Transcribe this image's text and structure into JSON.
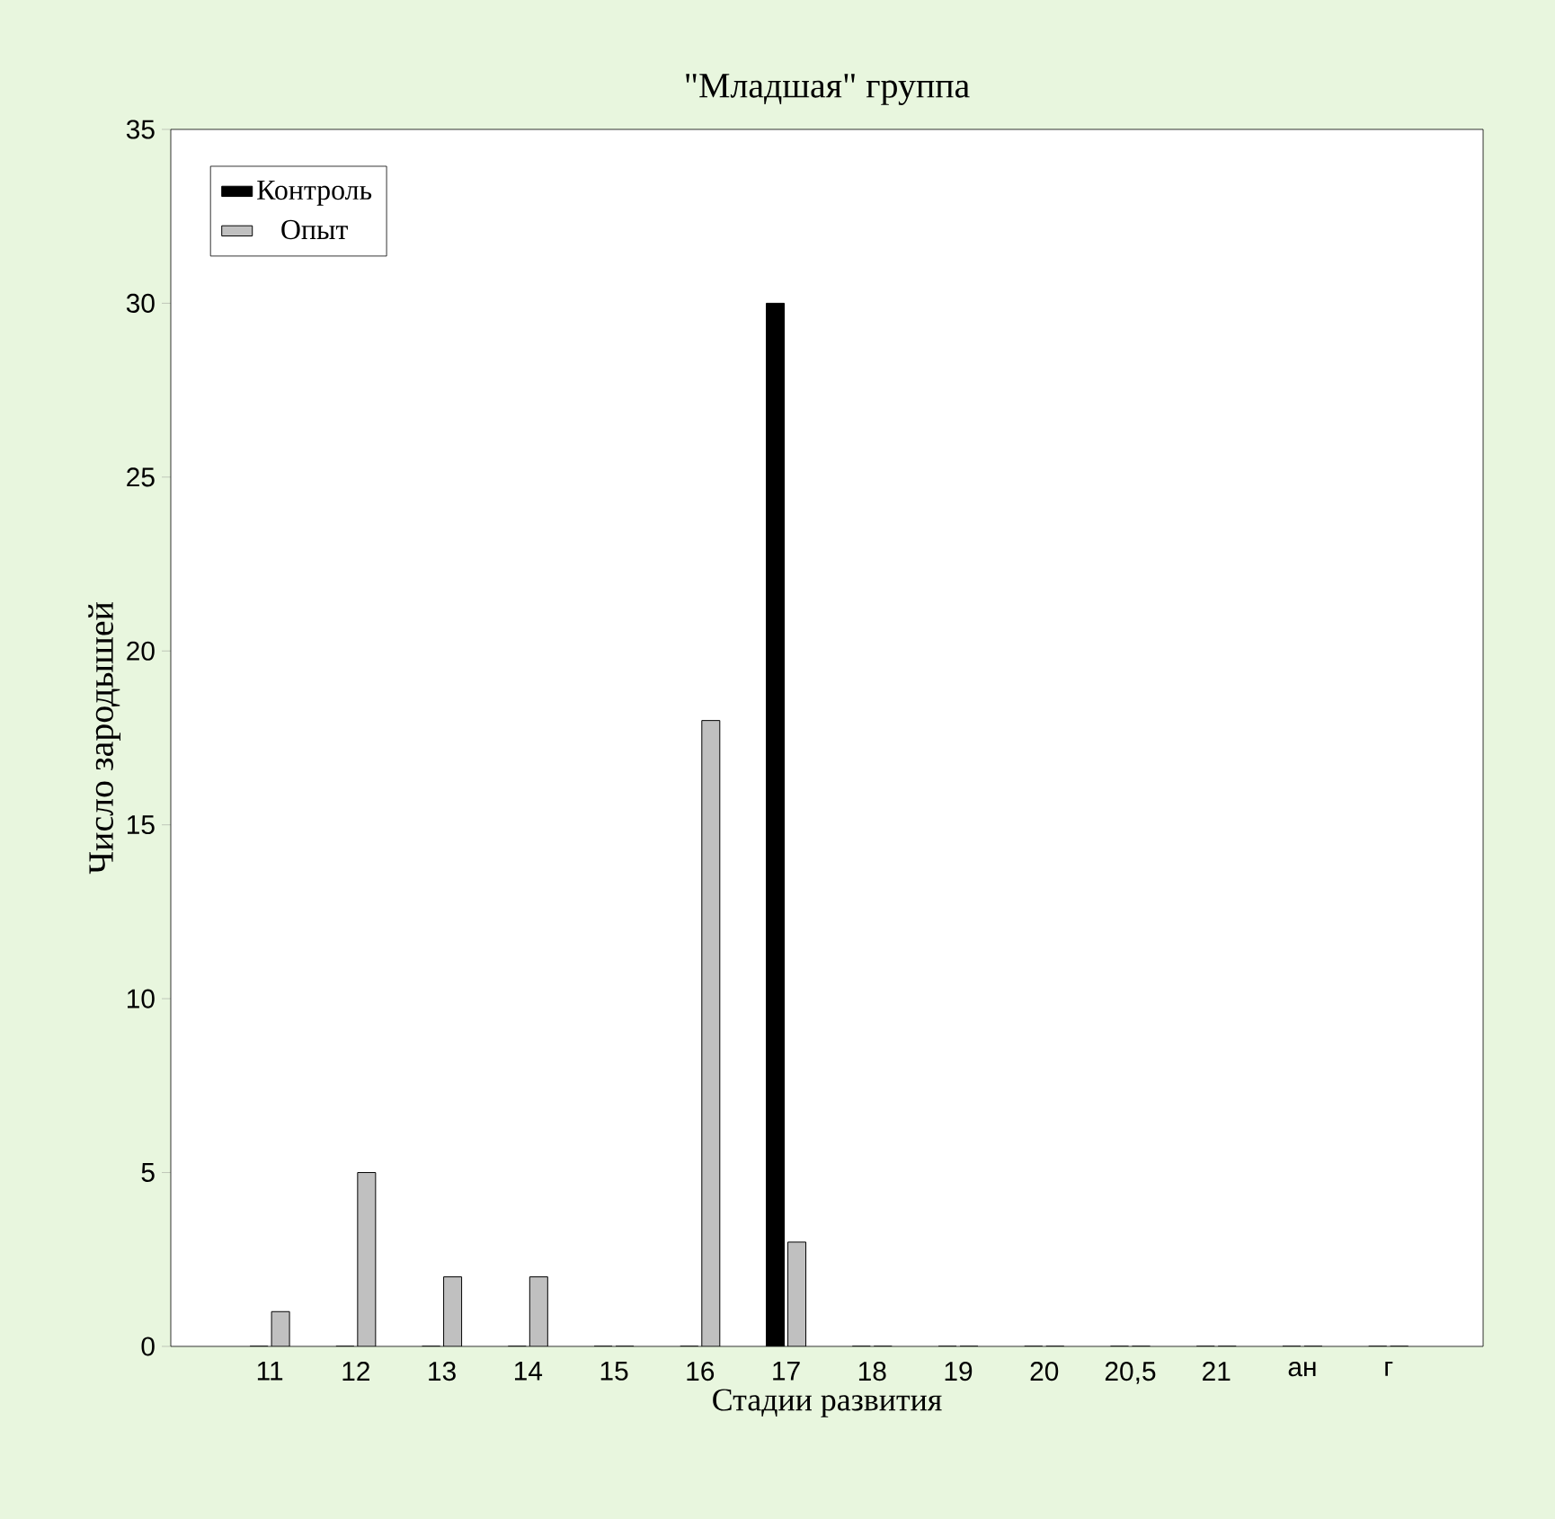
{
  "chart_data": {
    "type": "bar",
    "title": "\"Младшая\" группа",
    "xlabel": "Стадии развития",
    "ylabel": "Число зародышей",
    "categories": [
      "11",
      "12",
      "13",
      "14",
      "15",
      "16",
      "17",
      "18",
      "19",
      "20",
      "20,5",
      "21",
      "ан",
      "г"
    ],
    "series": [
      {
        "name": "Контроль",
        "color": "#000000",
        "values": [
          0,
          0,
          0,
          0,
          0,
          0,
          30,
          0,
          0,
          0,
          0,
          0,
          0,
          0
        ]
      },
      {
        "name": "Опыт",
        "color": "#c0c0c0",
        "values": [
          1,
          5,
          2,
          2,
          0,
          18,
          3,
          0,
          0,
          0,
          0,
          0,
          0,
          0
        ]
      }
    ],
    "ylim": [
      0,
      35
    ],
    "yticks": [
      0,
      5,
      10,
      15,
      20,
      25,
      30,
      35
    ],
    "legend": "top left"
  }
}
